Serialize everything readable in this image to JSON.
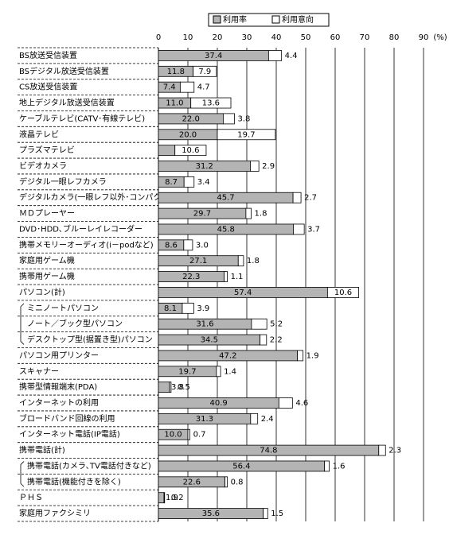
{
  "chart_data": {
    "type": "stacked_bar_horizontal",
    "categories": [
      "BS放送受信装置",
      "BSデジタル放送受信装置",
      "CS放送受信装置",
      "地上デジタル放送受信装置",
      "ケーブルテレビ(CATV･有線テレビ)",
      "液晶テレビ",
      "プラズマテレビ",
      "ビデオカメラ",
      "デジタル一眼レフカメラ",
      "デジタルカメラ(一眼レフ以外･コンパクト)",
      "ＭＤプレーヤー",
      "DVD･HDD､ブルーレイレコーダー",
      "携帯メモリーオーディオ(i－podなど)",
      "家庭用ゲーム機",
      "携帯用ゲーム機",
      "パソコン(計)",
      "ミニノートパソコン",
      "ノート／ブック型パソコン",
      "デスクトップ型(据置き型)パソコン",
      "パソコン用プリンター",
      "スキャナー",
      "携帯型情報端末(PDA)",
      "インターネットの利用",
      "ブロードバンド回線の利用",
      "インターネット電話(IP電話)",
      "携帯電話(計)",
      "携帯電話(カメラ､TV電話付きなど)",
      "携帯電話(機能付きを除く)",
      "ＰＨＳ",
      "家庭用ファクシミリ"
    ],
    "series": [
      {
        "name": "利用率",
        "color": "#b4b4b4",
        "values": [
          37.4,
          11.8,
          7.4,
          11.0,
          22.0,
          20.0,
          5.6,
          31.2,
          8.7,
          45.7,
          29.7,
          45.8,
          8.6,
          27.1,
          22.3,
          57.4,
          8.1,
          31.6,
          34.5,
          47.2,
          19.7,
          3.8,
          40.9,
          31.3,
          10.0,
          74.8,
          56.4,
          22.6,
          1.9,
          35.6
        ],
        "value_labels": [
          "37.4",
          "11.8",
          "7.4",
          "11.0",
          "22.0",
          "20.0",
          "5.6",
          "31.2",
          "8.7",
          "45.7",
          "29.7",
          "45.8",
          "8.6",
          "27.1",
          "22.3",
          "57.4",
          "8.1",
          "31.6",
          "34.5",
          "47.2",
          "19.7",
          "3.8",
          "40.9",
          "31.3",
          "10.0",
          "74.8",
          "56.4",
          "22.6",
          "1.9",
          "35.6"
        ]
      },
      {
        "name": "利用意向",
        "color": "#ffffff",
        "values": [
          4.4,
          7.9,
          4.7,
          13.6,
          3.8,
          19.7,
          10.6,
          2.9,
          3.4,
          2.7,
          1.8,
          3.7,
          3.0,
          1.8,
          1.1,
          10.6,
          3.9,
          5.2,
          2.2,
          1.9,
          1.4,
          0.5,
          4.6,
          2.4,
          0.7,
          2.3,
          1.6,
          0.8,
          0.2,
          1.5
        ],
        "value_labels": [
          "4.4",
          "7.9",
          "4.7",
          "13.6",
          "3.8",
          "19.7",
          "10.6",
          "2.9",
          "3.4",
          "2.7",
          "1.8",
          "3.7",
          "3.0",
          "1.8",
          "1.1",
          "10.6",
          "3.9",
          "5.2",
          "2.2",
          "1.9",
          "1.4",
          "0.5",
          "4.6",
          "2.4",
          "0.7",
          "2.3",
          "1.6",
          "0.8",
          "0.2",
          "1.5"
        ]
      }
    ],
    "xlim": [
      0,
      90
    ],
    "xticks": [
      0,
      10,
      20,
      30,
      40,
      50,
      60,
      70,
      80,
      90
    ],
    "x_unit": "(%)",
    "grid": true
  }
}
